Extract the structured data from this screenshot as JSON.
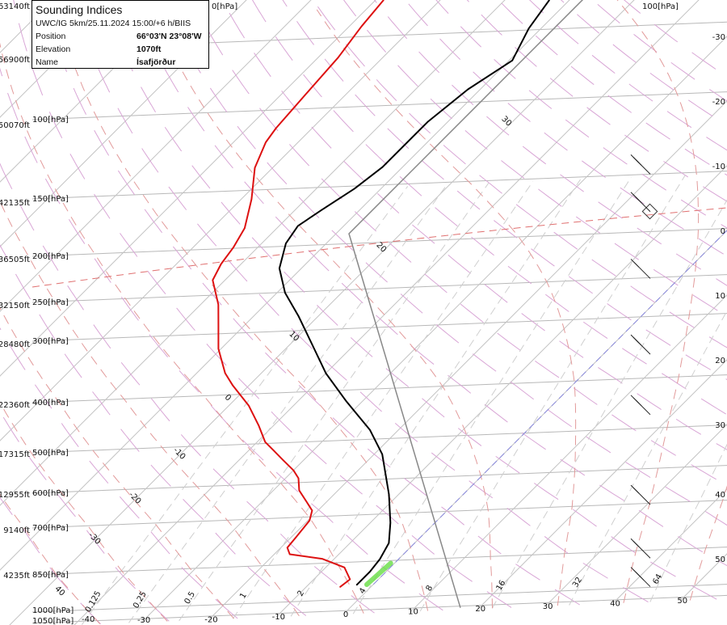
{
  "info": {
    "title": "Sounding Indices",
    "subtitle": "UWC/IG 5km/25.11.2024 15:00/+6 h/BIIS",
    "rows": [
      {
        "label": "Position",
        "value": "66°03'N 23°08'W"
      },
      {
        "label": "Elevation",
        "value": "1070ft"
      },
      {
        "label": "Name",
        "value": "Ísafjörður"
      }
    ]
  },
  "chart_data": {
    "type": "line",
    "subtype": "skew-T log-p diagram",
    "x_axis": {
      "quantity": "temperature",
      "unit": "°C",
      "tick_labels": [
        "-30",
        "-20",
        "-10",
        "0",
        "10",
        "20",
        "30",
        "40",
        "50"
      ]
    },
    "y_axis": {
      "quantity": "pressure",
      "unit": "hPa",
      "scale": "log",
      "range": [
        1050,
        50
      ]
    },
    "pressure_labels": [
      "1050[hPa]",
      "1000[hPa]",
      "850[hPa]",
      "700[hPa]",
      "600[hPa]",
      "500[hPa]",
      "400[hPa]",
      "300[hPa]",
      "250[hPa]",
      "200[hPa]",
      "150[hPa]",
      "100[hPa]"
    ],
    "pressure_label_values": [
      1050,
      1000,
      850,
      700,
      600,
      500,
      400,
      300,
      250,
      200,
      150,
      100
    ],
    "altitude_labels": [
      "4235ft",
      "9140ft",
      "12955ft",
      "17315ft",
      "22360ft",
      "28480ft",
      "32150ft",
      "36505ft",
      "42135ft",
      "50070ft",
      "56900ft",
      "63140ft"
    ],
    "top_labels": [
      "0[hPa]",
      "100[hPa]"
    ],
    "right_temperature_labels": [
      "-30",
      "-20",
      "-10",
      "0",
      "10",
      "20",
      "30",
      "40",
      "50"
    ],
    "mixing_ratio_labels": [
      "0.125",
      "0.25",
      "0.5",
      "1",
      "2",
      "4",
      "8",
      "16",
      "32",
      "64"
    ],
    "moist_adiabat_labels": [
      "40",
      "-30",
      "-20",
      "-10",
      "0",
      "10",
      "20",
      "30"
    ],
    "bottom_extra_label": "-40",
    "series": [
      {
        "key": "temperature",
        "color": "#000000",
        "points": [
          [
            934,
            -2.5
          ],
          [
            884,
            -2.5
          ],
          [
            839,
            -2.9
          ],
          [
            786,
            -4.0
          ],
          [
            723,
            -6.9
          ],
          [
            639,
            -11.5
          ],
          [
            533,
            -18.75
          ],
          [
            477,
            -24.4
          ],
          [
            418,
            -32.5
          ],
          [
            366,
            -40.0
          ],
          [
            313,
            -47.5
          ],
          [
            279,
            -53.0
          ],
          [
            249,
            -58.75
          ],
          [
            221,
            -63.4
          ],
          [
            196,
            -66.25
          ],
          [
            180,
            -67.1
          ],
          [
            167,
            -65.9
          ],
          [
            151,
            -64.1
          ],
          [
            136,
            -63.1
          ],
          [
            109,
            -63.1
          ],
          [
            93,
            -61.9
          ],
          [
            81,
            -59.5
          ],
          [
            69,
            -61.9
          ],
          [
            60,
            -63.1
          ]
        ]
      },
      {
        "key": "dewpoint",
        "color": "#dd1111",
        "points": [
          [
            940,
            -4.75
          ],
          [
            911,
            -4.4
          ],
          [
            864,
            -7.1
          ],
          [
            830,
            -11.9
          ],
          [
            810,
            -17.6
          ],
          [
            788,
            -19.0
          ],
          [
            757,
            -19.25
          ],
          [
            707,
            -19.75
          ],
          [
            677,
            -20.9
          ],
          [
            653,
            -22.9
          ],
          [
            618,
            -26.0
          ],
          [
            585,
            -28.0
          ],
          [
            564,
            -30.0
          ],
          [
            537,
            -33.25
          ],
          [
            513,
            -36.25
          ],
          [
            494,
            -38.75
          ],
          [
            459,
            -42.25
          ],
          [
            419,
            -46.9
          ],
          [
            381,
            -52.5
          ],
          [
            359,
            -55.6
          ],
          [
            320,
            -60.4
          ],
          [
            286,
            -64.1
          ],
          [
            260,
            -67.25
          ],
          [
            231,
            -71.9
          ],
          [
            214,
            -73.1
          ],
          [
            198,
            -73.75
          ],
          [
            180,
            -75.0
          ],
          [
            156,
            -78.4
          ],
          [
            133,
            -82.75
          ],
          [
            117,
            -85.0
          ],
          [
            109,
            -85.6
          ],
          [
            92,
            -86.25
          ],
          [
            77,
            -86.9
          ],
          [
            66,
            -88.1
          ],
          [
            58,
            -88.75
          ]
        ]
      },
      {
        "key": "reference-profile",
        "color": "#888888",
        "points": [
          [
            1050,
            17.0
          ],
          [
            189,
            -58.0
          ],
          [
            60,
            -58.0
          ]
        ]
      },
      {
        "key": "parcel-base",
        "color": "#66dd44",
        "points": [
          [
            935,
            -1.0
          ],
          [
            855,
            -0.6
          ]
        ]
      }
    ],
    "highlight_isotherm": {
      "T": 0,
      "color": "#8888dd"
    },
    "wind_barbs": [
      {
        "p": 150,
        "feathers": 3
      },
      {
        "p": 181,
        "feathers": 3
      },
      {
        "p": 251,
        "feathers": 2
      },
      {
        "p": 358,
        "feathers": 3
      },
      {
        "p": 471,
        "feathers": 3
      },
      {
        "p": 704,
        "feathers": 2
      },
      {
        "p": 880,
        "feathers": 2
      },
      {
        "p": 997,
        "feathers": 4
      }
    ],
    "grid": true,
    "colors": {
      "isotherm": "#c4c4c4",
      "dry_adiabat": "#d9a6d6",
      "moist_adiabat": "#e29a9a",
      "mixing_ratio": "#cfcfcf",
      "tropopause": "#e07070"
    }
  }
}
